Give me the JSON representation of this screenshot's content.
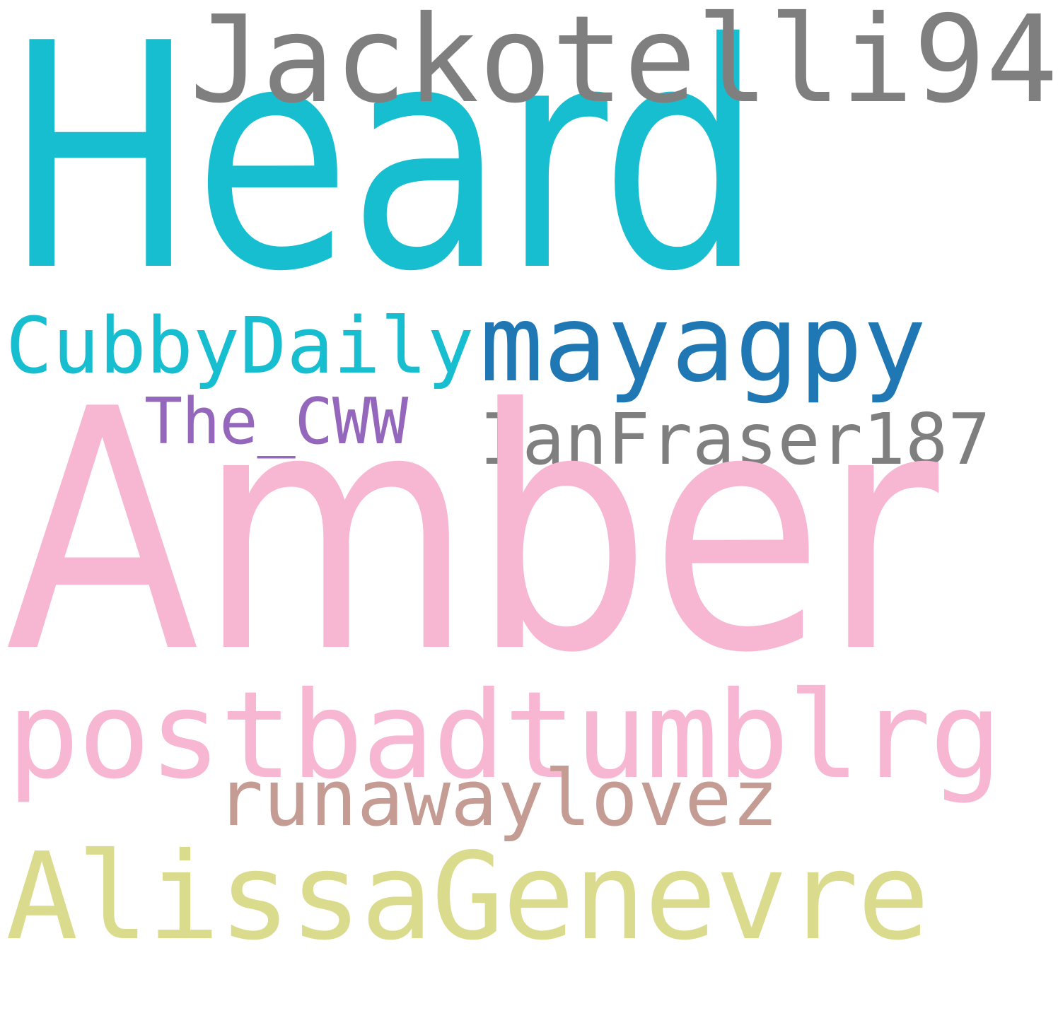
{
  "cloud": {
    "background": "#ffffff",
    "words": [
      {
        "key": "heard",
        "text": "Heard",
        "color": "#17becf"
      },
      {
        "key": "amber",
        "text": "Amber",
        "color": "#f7b6d2"
      },
      {
        "key": "jackotelli",
        "text": "Jackotelli94",
        "color": "#7f7f7f"
      },
      {
        "key": "mayagpy",
        "text": "mayagpy",
        "color": "#1f77b4"
      },
      {
        "key": "cubby",
        "text": "CubbyDaily",
        "color": "#17becf"
      },
      {
        "key": "thecww",
        "text": "The_CWW",
        "color": "#9467bd"
      },
      {
        "key": "ianfraser",
        "text": "IanFraser187",
        "color": "#7f7f7f"
      },
      {
        "key": "postbad",
        "text": "postbadtumblrg",
        "color": "#f7b6d2"
      },
      {
        "key": "runaway",
        "text": "runawaylovez",
        "color": "#c49c94"
      },
      {
        "key": "alissa",
        "text": "AlissaGenevre",
        "color": "#dbdb8d"
      }
    ]
  }
}
